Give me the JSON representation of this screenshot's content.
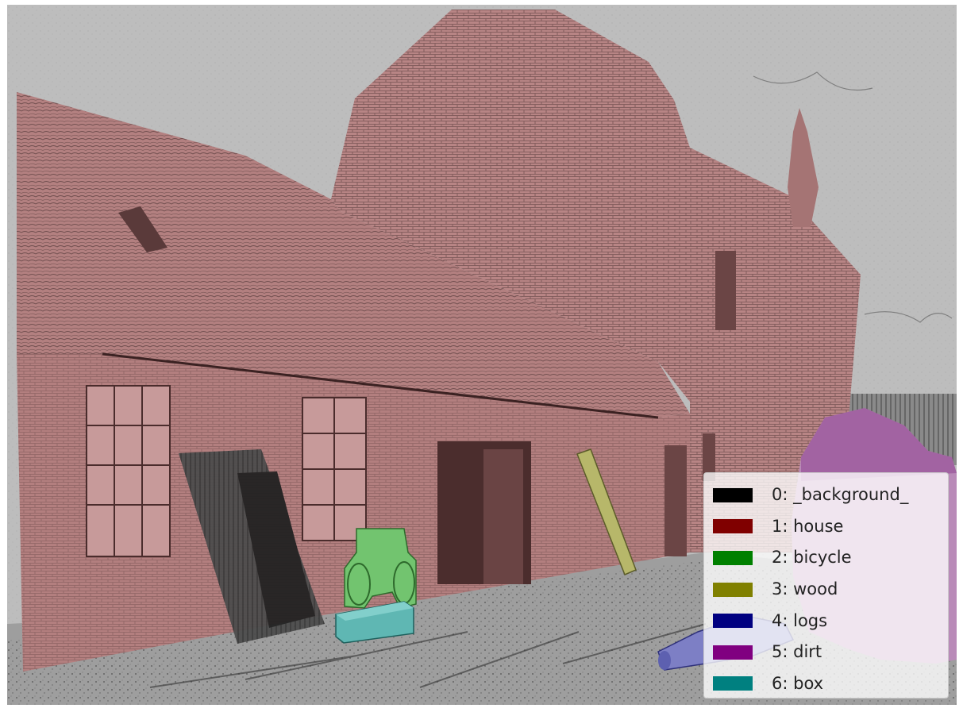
{
  "legend": {
    "entries": [
      {
        "label": "0: _background_",
        "color": "#000000"
      },
      {
        "label": "1: house",
        "color": "#800000"
      },
      {
        "label": "2: bicycle",
        "color": "#008000"
      },
      {
        "label": "3: wood",
        "color": "#808000"
      },
      {
        "label": "4: logs",
        "color": "#000080"
      },
      {
        "label": "5: dirt",
        "color": "#800080"
      },
      {
        "label": "6: box",
        "color": "#008080"
      }
    ]
  },
  "colors": {
    "sky": "#bcbcbc",
    "ground": "#9a9a9a",
    "sketch_line": "#333333"
  }
}
